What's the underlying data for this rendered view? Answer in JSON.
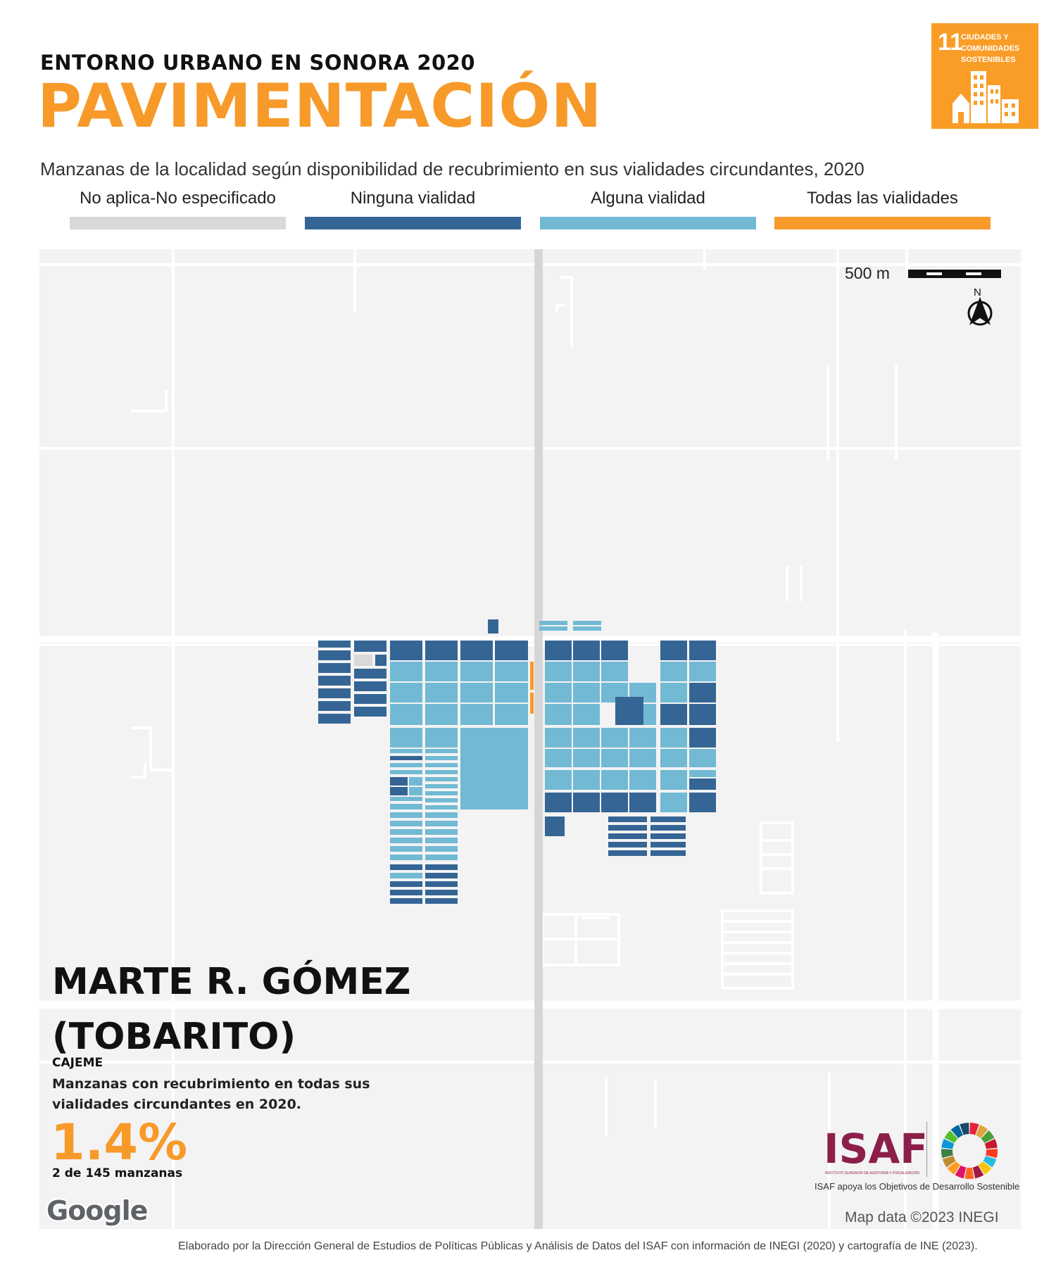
{
  "header": {
    "supertitle": "ENTORNO URBANO EN SONORA 2020",
    "title": "PAVIMENTACIÓN",
    "subtitle": "Manzanas de la localidad según disponibilidad de recubrimiento en sus vialidades circundantes, 2020"
  },
  "legend": [
    {
      "label": "No aplica-No especificado",
      "color": "#d9d9d9"
    },
    {
      "label": "Ninguna vialidad",
      "color": "#356595"
    },
    {
      "label": "Alguna vialidad",
      "color": "#72b9d4"
    },
    {
      "label": "Todas las vialidades",
      "color": "#f79a2a"
    }
  ],
  "sdg_badge": {
    "number": "11",
    "text": "CIUDADES Y COMUNIDADES SOSTENIBLES",
    "color": "#f99d26",
    "icon": "city-buildings-icon"
  },
  "map": {
    "scale_label": "500 m",
    "north_label": "N",
    "attribution": "Map data ©2023 INEGI",
    "provider_logo": "Google",
    "background_color": "#f3f3f3",
    "road_color": "#ffffff",
    "highway_color": "#d6d6d6"
  },
  "locality": {
    "name_line1": "MARTE R. GÓMEZ",
    "name_line2": "(TOBARITO)",
    "municipality": "CAJEME",
    "description": "Manzanas con recubrimiento en todas sus vialidades circundantes en 2020.",
    "percentage": "1.4%",
    "count_text": "2 de 145 manzanas"
  },
  "isaf": {
    "logo_text": "ISAF",
    "logo_small_text": "INSTITUTO SUPERIOR DE AUDITORÍA Y FISCALIZACIÓN",
    "caption": "ISAF apoya los Objetivos de Desarrollo Sostenible",
    "color": "#8c1f4a"
  },
  "footer": {
    "credit": "Elaborado por la Dirección General de Estudios de Políticas Públicas y Análisis de Datos del ISAF con información de INEGI (2020) y cartografía de INE (2023)."
  }
}
